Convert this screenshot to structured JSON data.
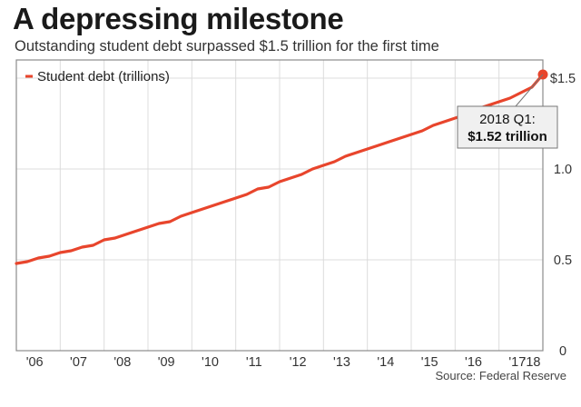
{
  "title": "A depressing milestone",
  "subtitle": "Outstanding student debt surpassed $1.5 trillion for the first time",
  "source": "Source: Federal Reserve",
  "colors": {
    "line": "#e8452c",
    "grid": "#dcdcdc",
    "frame": "#8c8c8c",
    "annotation_border": "#777777",
    "annotation_bg": "#f0f0f0"
  },
  "chart_data": {
    "type": "line",
    "title": "A depressing milestone",
    "subtitle": "Outstanding student debt surpassed $1.5 trillion for the first time",
    "xlabel": "",
    "ylabel": "",
    "x_tick_labels": [
      "'06",
      "'07",
      "'08",
      "'09",
      "'10",
      "'11",
      "'12",
      "'13",
      "'14",
      "'15",
      "'16",
      "'17",
      "'18"
    ],
    "y_ticks": [
      0,
      0.5,
      1.0,
      1.5
    ],
    "y_tick_labels": [
      "0",
      "0.5",
      "1.0",
      "$1.5"
    ],
    "ylim": [
      0,
      1.6
    ],
    "grid": true,
    "legend": {
      "placement": "top-left",
      "entries": [
        "Student debt (trillions)"
      ]
    },
    "series": [
      {
        "name": "Student debt (trillions)",
        "x": [
          "2006 Q1",
          "2006 Q2",
          "2006 Q3",
          "2006 Q4",
          "2007 Q1",
          "2007 Q2",
          "2007 Q3",
          "2007 Q4",
          "2008 Q1",
          "2008 Q2",
          "2008 Q3",
          "2008 Q4",
          "2009 Q1",
          "2009 Q2",
          "2009 Q3",
          "2009 Q4",
          "2010 Q1",
          "2010 Q2",
          "2010 Q3",
          "2010 Q4",
          "2011 Q1",
          "2011 Q2",
          "2011 Q3",
          "2011 Q4",
          "2012 Q1",
          "2012 Q2",
          "2012 Q3",
          "2012 Q4",
          "2013 Q1",
          "2013 Q2",
          "2013 Q3",
          "2013 Q4",
          "2014 Q1",
          "2014 Q2",
          "2014 Q3",
          "2014 Q4",
          "2015 Q1",
          "2015 Q2",
          "2015 Q3",
          "2015 Q4",
          "2016 Q1",
          "2016 Q2",
          "2016 Q3",
          "2016 Q4",
          "2017 Q1",
          "2017 Q2",
          "2017 Q3",
          "2017 Q4",
          "2018 Q1"
        ],
        "values": [
          0.48,
          0.49,
          0.51,
          0.52,
          0.54,
          0.55,
          0.57,
          0.58,
          0.61,
          0.62,
          0.64,
          0.66,
          0.68,
          0.7,
          0.71,
          0.74,
          0.76,
          0.78,
          0.8,
          0.82,
          0.84,
          0.86,
          0.89,
          0.9,
          0.93,
          0.95,
          0.97,
          1.0,
          1.02,
          1.04,
          1.07,
          1.09,
          1.11,
          1.13,
          1.15,
          1.17,
          1.19,
          1.21,
          1.24,
          1.26,
          1.28,
          1.3,
          1.33,
          1.35,
          1.37,
          1.39,
          1.42,
          1.45,
          1.52
        ]
      }
    ],
    "annotations": [
      {
        "line1": "2018 Q1:",
        "line2": "$1.52 trillion",
        "points_to": "2018 Q1"
      }
    ]
  }
}
